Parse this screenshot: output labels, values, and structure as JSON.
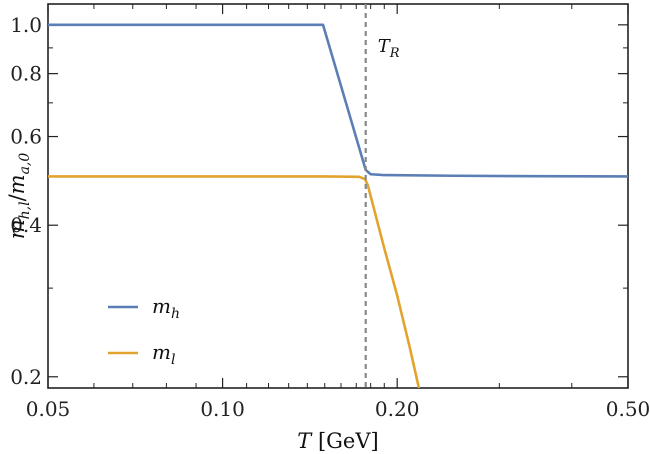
{
  "chart_data": {
    "type": "line",
    "xscale": "log",
    "yscale": "log",
    "xlim": [
      0.05,
      0.5
    ],
    "ylim": [
      0.19,
      1.1
    ],
    "xticks": [
      0.05,
      0.1,
      0.2,
      0.5
    ],
    "xtick_labels": [
      "0.05",
      "0.10",
      "0.20",
      "0.50"
    ],
    "yticks": [
      0.2,
      0.4,
      0.6,
      0.8,
      1.0
    ],
    "ytick_labels": [
      "0.2",
      "0.4",
      "0.6",
      "0.8",
      "1.0"
    ],
    "xlabel": "T [GeV]",
    "ylabel": "m_{h,l}/m_{a,0}",
    "grid": false,
    "legend_position": "bottom-left",
    "series": [
      {
        "name": "m_h",
        "color": "#5b7fb5",
        "x": [
          0.05,
          0.1,
          0.149,
          0.1765,
          0.18,
          0.19,
          0.25,
          0.35,
          0.5
        ],
        "y": [
          1.0,
          1.0,
          1.0,
          0.515,
          0.505,
          0.503,
          0.5015,
          0.5005,
          0.5
        ]
      },
      {
        "name": "m_l",
        "color": "#e3a42f",
        "x": [
          0.05,
          0.1,
          0.15,
          0.172,
          0.176,
          0.178,
          0.19,
          0.2,
          0.21,
          0.218
        ],
        "y": [
          0.5,
          0.5,
          0.5,
          0.499,
          0.494,
          0.48,
          0.36,
          0.29,
          0.23,
          0.19
        ]
      }
    ],
    "annotations": [
      {
        "type": "vline",
        "x": 0.1765,
        "style": "dashed",
        "color": "#888888",
        "label": "T_R"
      }
    ]
  }
}
